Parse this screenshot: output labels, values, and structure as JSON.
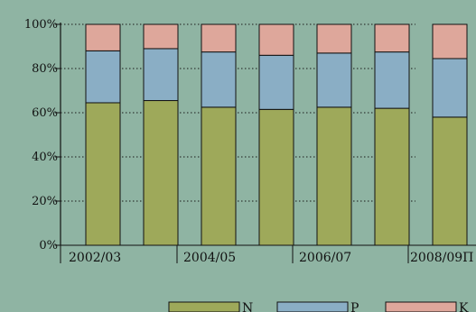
{
  "chart_data": {
    "type": "bar",
    "stacked": true,
    "normalized_percent": true,
    "title": "",
    "xlabel": "",
    "ylabel": "",
    "ylim": [
      0,
      100
    ],
    "y_ticks": [
      "0%",
      "20%",
      "40%",
      "60%",
      "80%",
      "100%"
    ],
    "grid": "horizontal dotted",
    "legend_position": "bottom",
    "category_labels": [
      "2002/03",
      "2004/05",
      "2006/07",
      "2008/09"
    ],
    "bars_per_category": 2,
    "last_category_trailing_text": "П",
    "series": [
      {
        "name": "N",
        "color": "#9ea95a",
        "values": [
          64.5,
          65.5,
          62.5,
          61.5,
          62.5,
          62.0,
          58.0
        ]
      },
      {
        "name": "P",
        "color": "#8aaec5",
        "values": [
          23.5,
          23.5,
          25.0,
          24.5,
          24.5,
          25.5,
          26.5
        ]
      },
      {
        "name": "K",
        "color": "#dea79b",
        "values": [
          12.0,
          11.0,
          12.5,
          14.0,
          13.0,
          12.5,
          15.5
        ]
      }
    ]
  }
}
